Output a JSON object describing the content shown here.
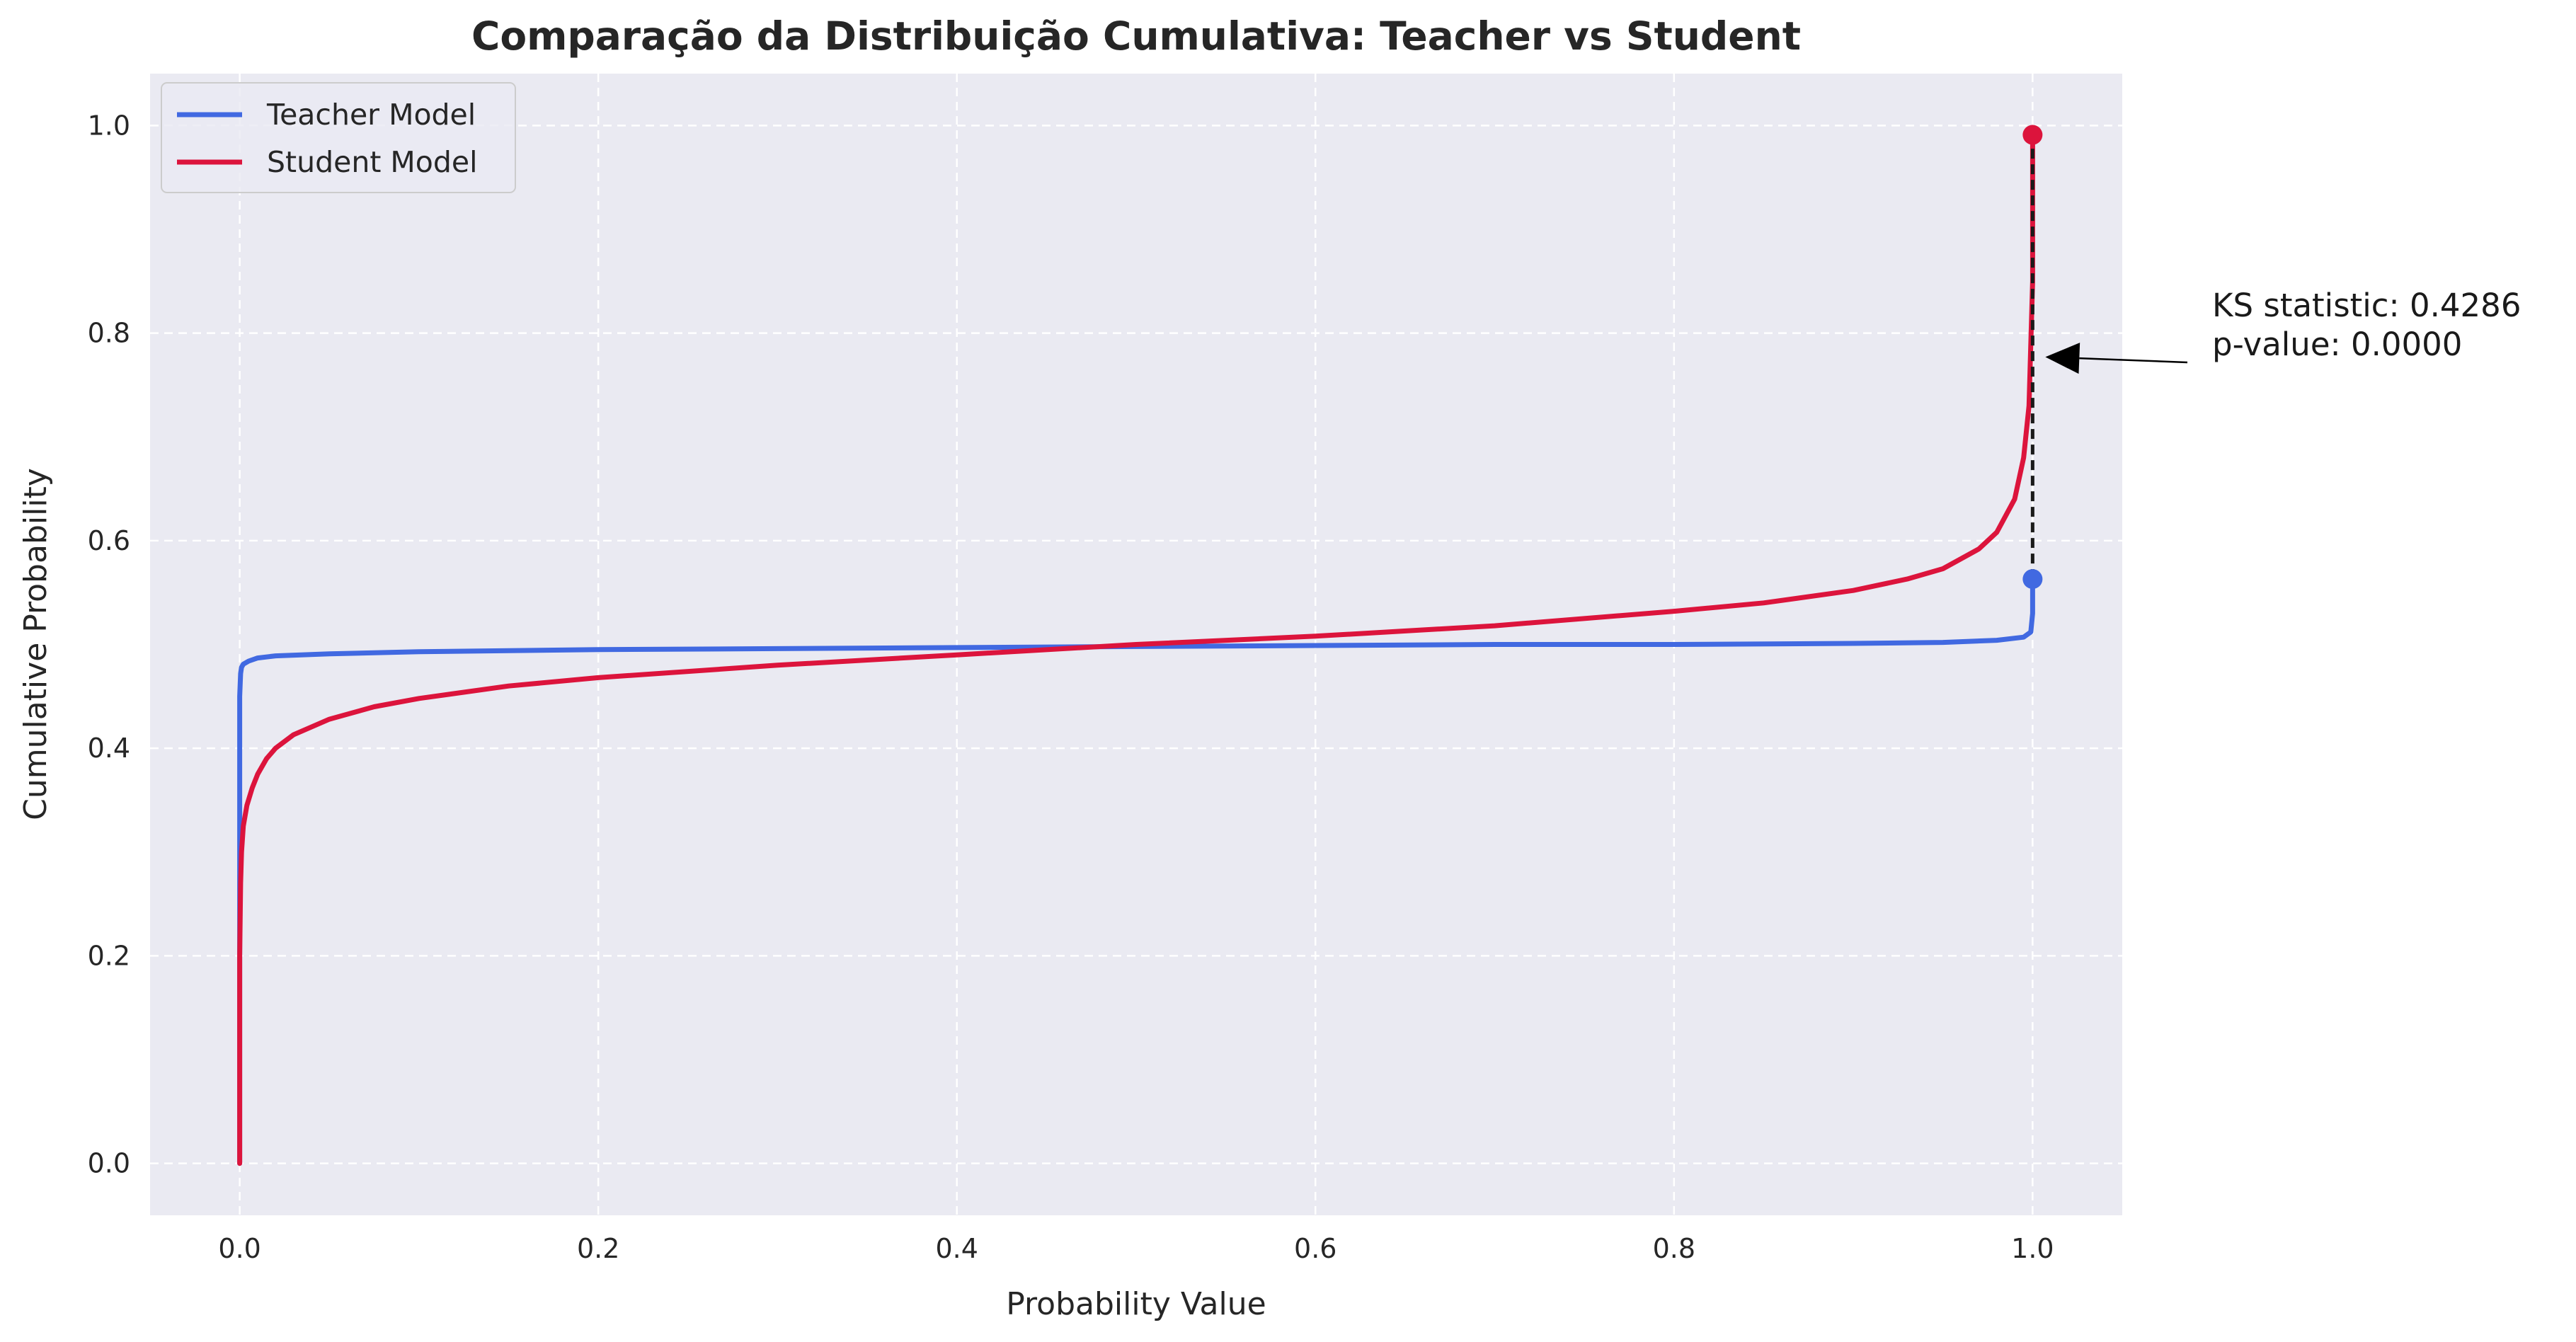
{
  "chart_data": {
    "type": "line",
    "title": "Comparação da Distribuição Cumulativa: Teacher vs Student",
    "xlabel": "Probability Value",
    "ylabel": "Cumulative Probability",
    "xlim": [
      -0.05,
      1.05
    ],
    "ylim": [
      -0.05,
      1.05
    ],
    "xticks": [
      "0.0",
      "0.2",
      "0.4",
      "0.6",
      "0.8",
      "1.0"
    ],
    "yticks": [
      "0.0",
      "0.2",
      "0.4",
      "0.6",
      "0.8",
      "1.0"
    ],
    "grid": true,
    "legend_position": "top-left",
    "series": [
      {
        "name": "Teacher Model",
        "color": "#4169e1",
        "x": [
          0.0,
          0.0,
          0.0,
          0.0005,
          0.001,
          0.002,
          0.005,
          0.01,
          0.02,
          0.05,
          0.1,
          0.2,
          0.3,
          0.4,
          0.5,
          0.6,
          0.7,
          0.8,
          0.9,
          0.95,
          0.98,
          0.995,
          0.999,
          1.0,
          1.0
        ],
        "y": [
          0.0,
          0.3,
          0.45,
          0.472,
          0.478,
          0.481,
          0.484,
          0.487,
          0.489,
          0.491,
          0.493,
          0.495,
          0.496,
          0.497,
          0.498,
          0.499,
          0.5,
          0.5,
          0.501,
          0.502,
          0.504,
          0.507,
          0.512,
          0.53,
          0.563
        ]
      },
      {
        "name": "Student Model",
        "color": "#dc143c",
        "x": [
          0.0,
          0.0,
          0.0005,
          0.001,
          0.002,
          0.004,
          0.007,
          0.01,
          0.015,
          0.02,
          0.03,
          0.05,
          0.075,
          0.1,
          0.15,
          0.2,
          0.3,
          0.4,
          0.5,
          0.6,
          0.7,
          0.8,
          0.85,
          0.9,
          0.93,
          0.95,
          0.97,
          0.98,
          0.99,
          0.995,
          0.998,
          1.0,
          1.0
        ],
        "y": [
          0.0,
          0.2,
          0.27,
          0.3,
          0.325,
          0.345,
          0.362,
          0.375,
          0.39,
          0.4,
          0.413,
          0.428,
          0.44,
          0.448,
          0.46,
          0.468,
          0.48,
          0.49,
          0.5,
          0.508,
          0.518,
          0.532,
          0.54,
          0.552,
          0.563,
          0.573,
          0.592,
          0.608,
          0.64,
          0.68,
          0.73,
          0.85,
          0.991
        ]
      }
    ],
    "ks_line": {
      "x": 1.0,
      "y_low": 0.563,
      "y_high": 0.991,
      "color": "#1a1a1a"
    },
    "markers": [
      {
        "x": 1.0,
        "y": 0.563,
        "color": "#4169e1"
      },
      {
        "x": 1.0,
        "y": 0.991,
        "color": "#dc143c"
      }
    ],
    "annotation": {
      "lines": [
        "KS statistic: 0.4286",
        "p-value: 0.0000"
      ],
      "arrow_to": {
        "x": 1.0,
        "y": 0.777
      }
    }
  }
}
